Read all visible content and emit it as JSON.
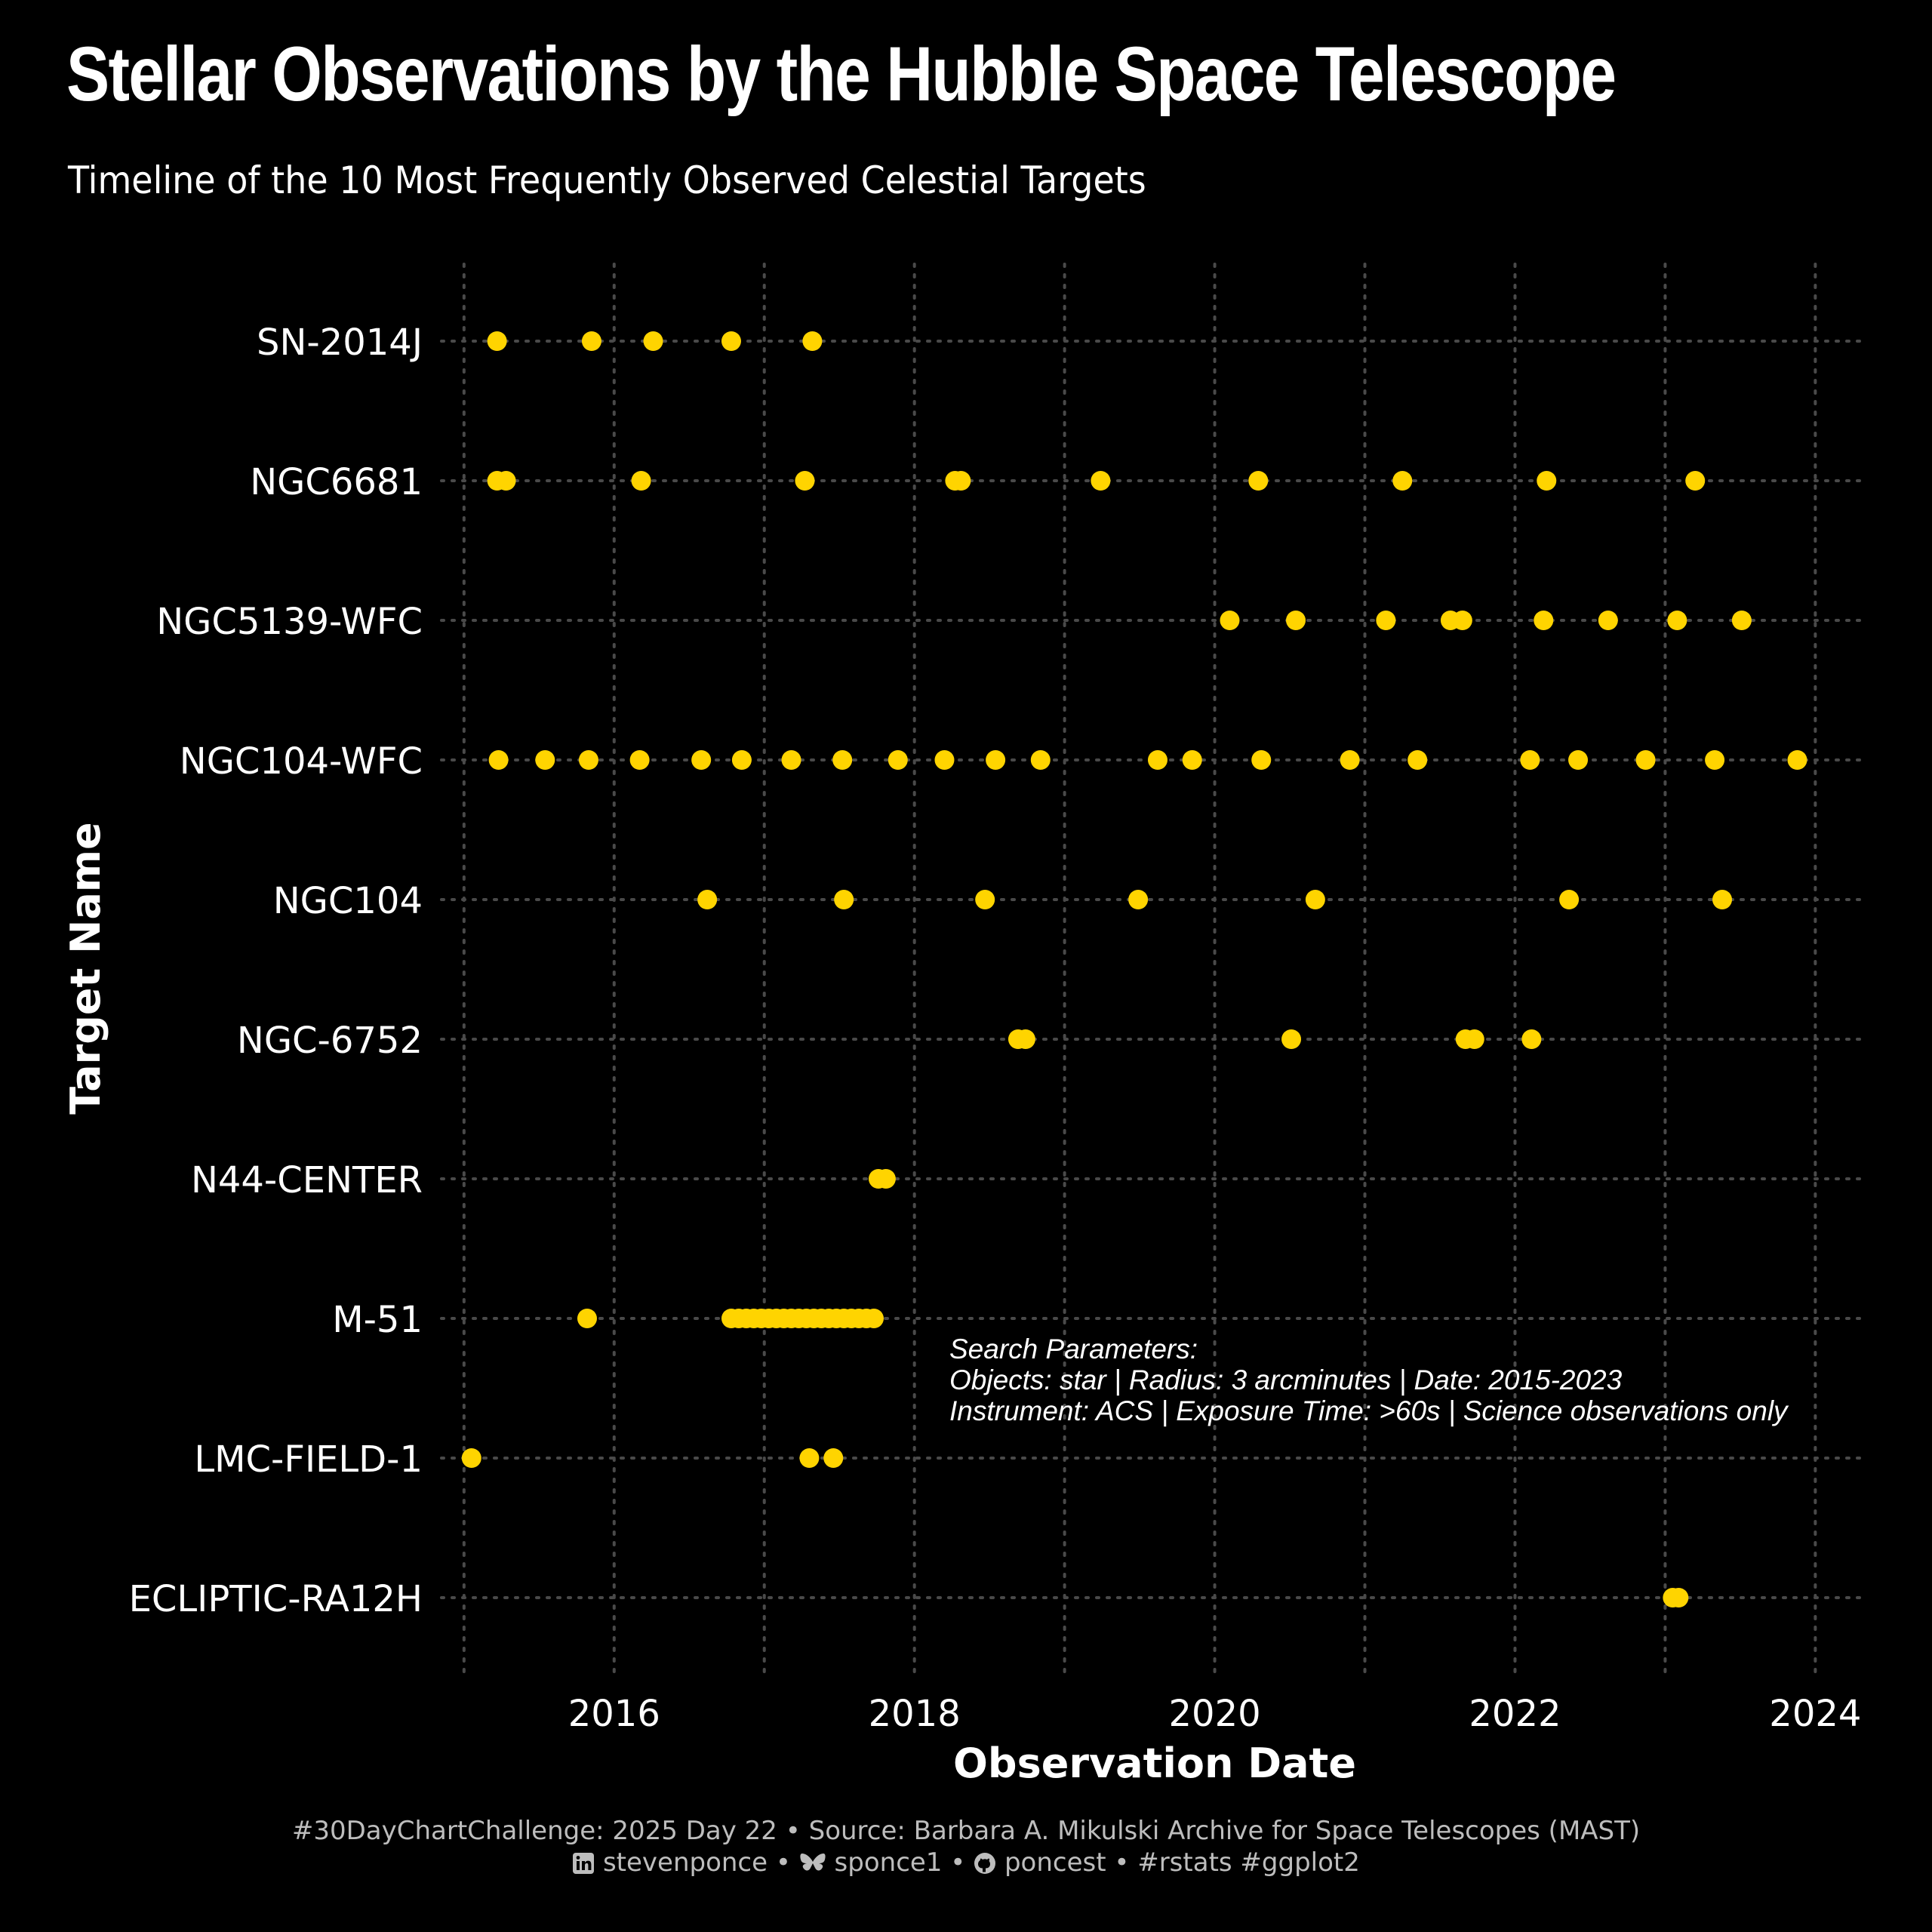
{
  "title": "Stellar Observations by the Hubble Space Telescope",
  "subtitle": "Timeline of the 10 Most Frequently Observed Celestial Targets",
  "colors": {
    "background": "#000000",
    "point": "#FFD400",
    "grid": "#4a4a4a",
    "text": "#ffffff",
    "caption": "#bdbdbd"
  },
  "chart_data": {
    "type": "scatter",
    "xlabel": "Observation Date",
    "ylabel": "Target Name",
    "xlim": [
      2014.85,
      2024.35
    ],
    "x_ticks": [
      2016,
      2018,
      2020,
      2022,
      2024
    ],
    "x_tick_labels": [
      "2016",
      "2018",
      "2020",
      "2022",
      "2024"
    ],
    "grid": "dotted",
    "categories": [
      "SN-2014J",
      "NGC6681",
      "NGC5139-WFC",
      "NGC104-WFC",
      "NGC104",
      "NGC-6752",
      "N44-CENTER",
      "M-51",
      "LMC-FIELD-1",
      "ECLIPTIC-RA12H"
    ],
    "series": [
      {
        "target": "SN-2014J",
        "x": [
          2015.22,
          2015.85,
          2016.26,
          2016.78,
          2017.32
        ]
      },
      {
        "target": "NGC6681",
        "x": [
          2015.22,
          2015.28,
          2016.18,
          2017.27,
          2018.27,
          2018.31,
          2019.24,
          2020.29,
          2021.25,
          2022.21,
          2023.2
        ]
      },
      {
        "target": "NGC5139-WFC",
        "x": [
          2020.1,
          2020.54,
          2021.14,
          2021.57,
          2021.65,
          2022.19,
          2022.62,
          2023.08,
          2023.51
        ]
      },
      {
        "target": "NGC104-WFC",
        "x": [
          2015.23,
          2015.54,
          2015.83,
          2016.17,
          2016.58,
          2016.85,
          2017.18,
          2017.52,
          2017.89,
          2018.2,
          2018.54,
          2018.84,
          2019.62,
          2019.85,
          2020.31,
          2020.9,
          2021.35,
          2022.1,
          2022.42,
          2022.87,
          2023.33,
          2023.88
        ]
      },
      {
        "target": "NGC104",
        "x": [
          2016.62,
          2017.53,
          2018.47,
          2019.49,
          2020.67,
          2022.36,
          2023.38
        ]
      },
      {
        "target": "NGC-6752",
        "x": [
          2018.69,
          2018.74,
          2020.51,
          2021.67,
          2021.73,
          2022.11
        ]
      },
      {
        "target": "N44-CENTER",
        "x": [
          2017.76,
          2017.81
        ]
      },
      {
        "target": "M-51",
        "x": [
          2015.82,
          2016.78,
          2016.83,
          2016.88,
          2016.93,
          2016.98,
          2017.03,
          2017.08,
          2017.13,
          2017.18,
          2017.23,
          2017.28,
          2017.33,
          2017.38,
          2017.43,
          2017.48,
          2017.53,
          2017.58,
          2017.63,
          2017.68,
          2017.73
        ]
      },
      {
        "target": "LMC-FIELD-1",
        "x": [
          2015.05,
          2017.3,
          2017.46
        ]
      },
      {
        "target": "ECLIPTIC-RA12H",
        "x": [
          2023.05,
          2023.09
        ]
      }
    ],
    "annotation": [
      "Search Parameters:",
      "Objects: star | Radius: 3 arcminutes | Date: 2015-2023",
      "Instrument: ACS | Exposure Time: >60s | Science observations only"
    ]
  },
  "caption": {
    "line1": "#30DayChartChallenge: 2025 Day 22 • Source: Barbara A. Mikulski Archive for Space Telescopes (MAST)",
    "linkedin": "stevenponce",
    "bluesky": "sponce1",
    "github": "poncest",
    "tags": "#rstats #ggplot2",
    "sep": "•",
    "icons": [
      "linkedin-icon",
      "bluesky-butterfly-icon",
      "github-icon"
    ]
  }
}
